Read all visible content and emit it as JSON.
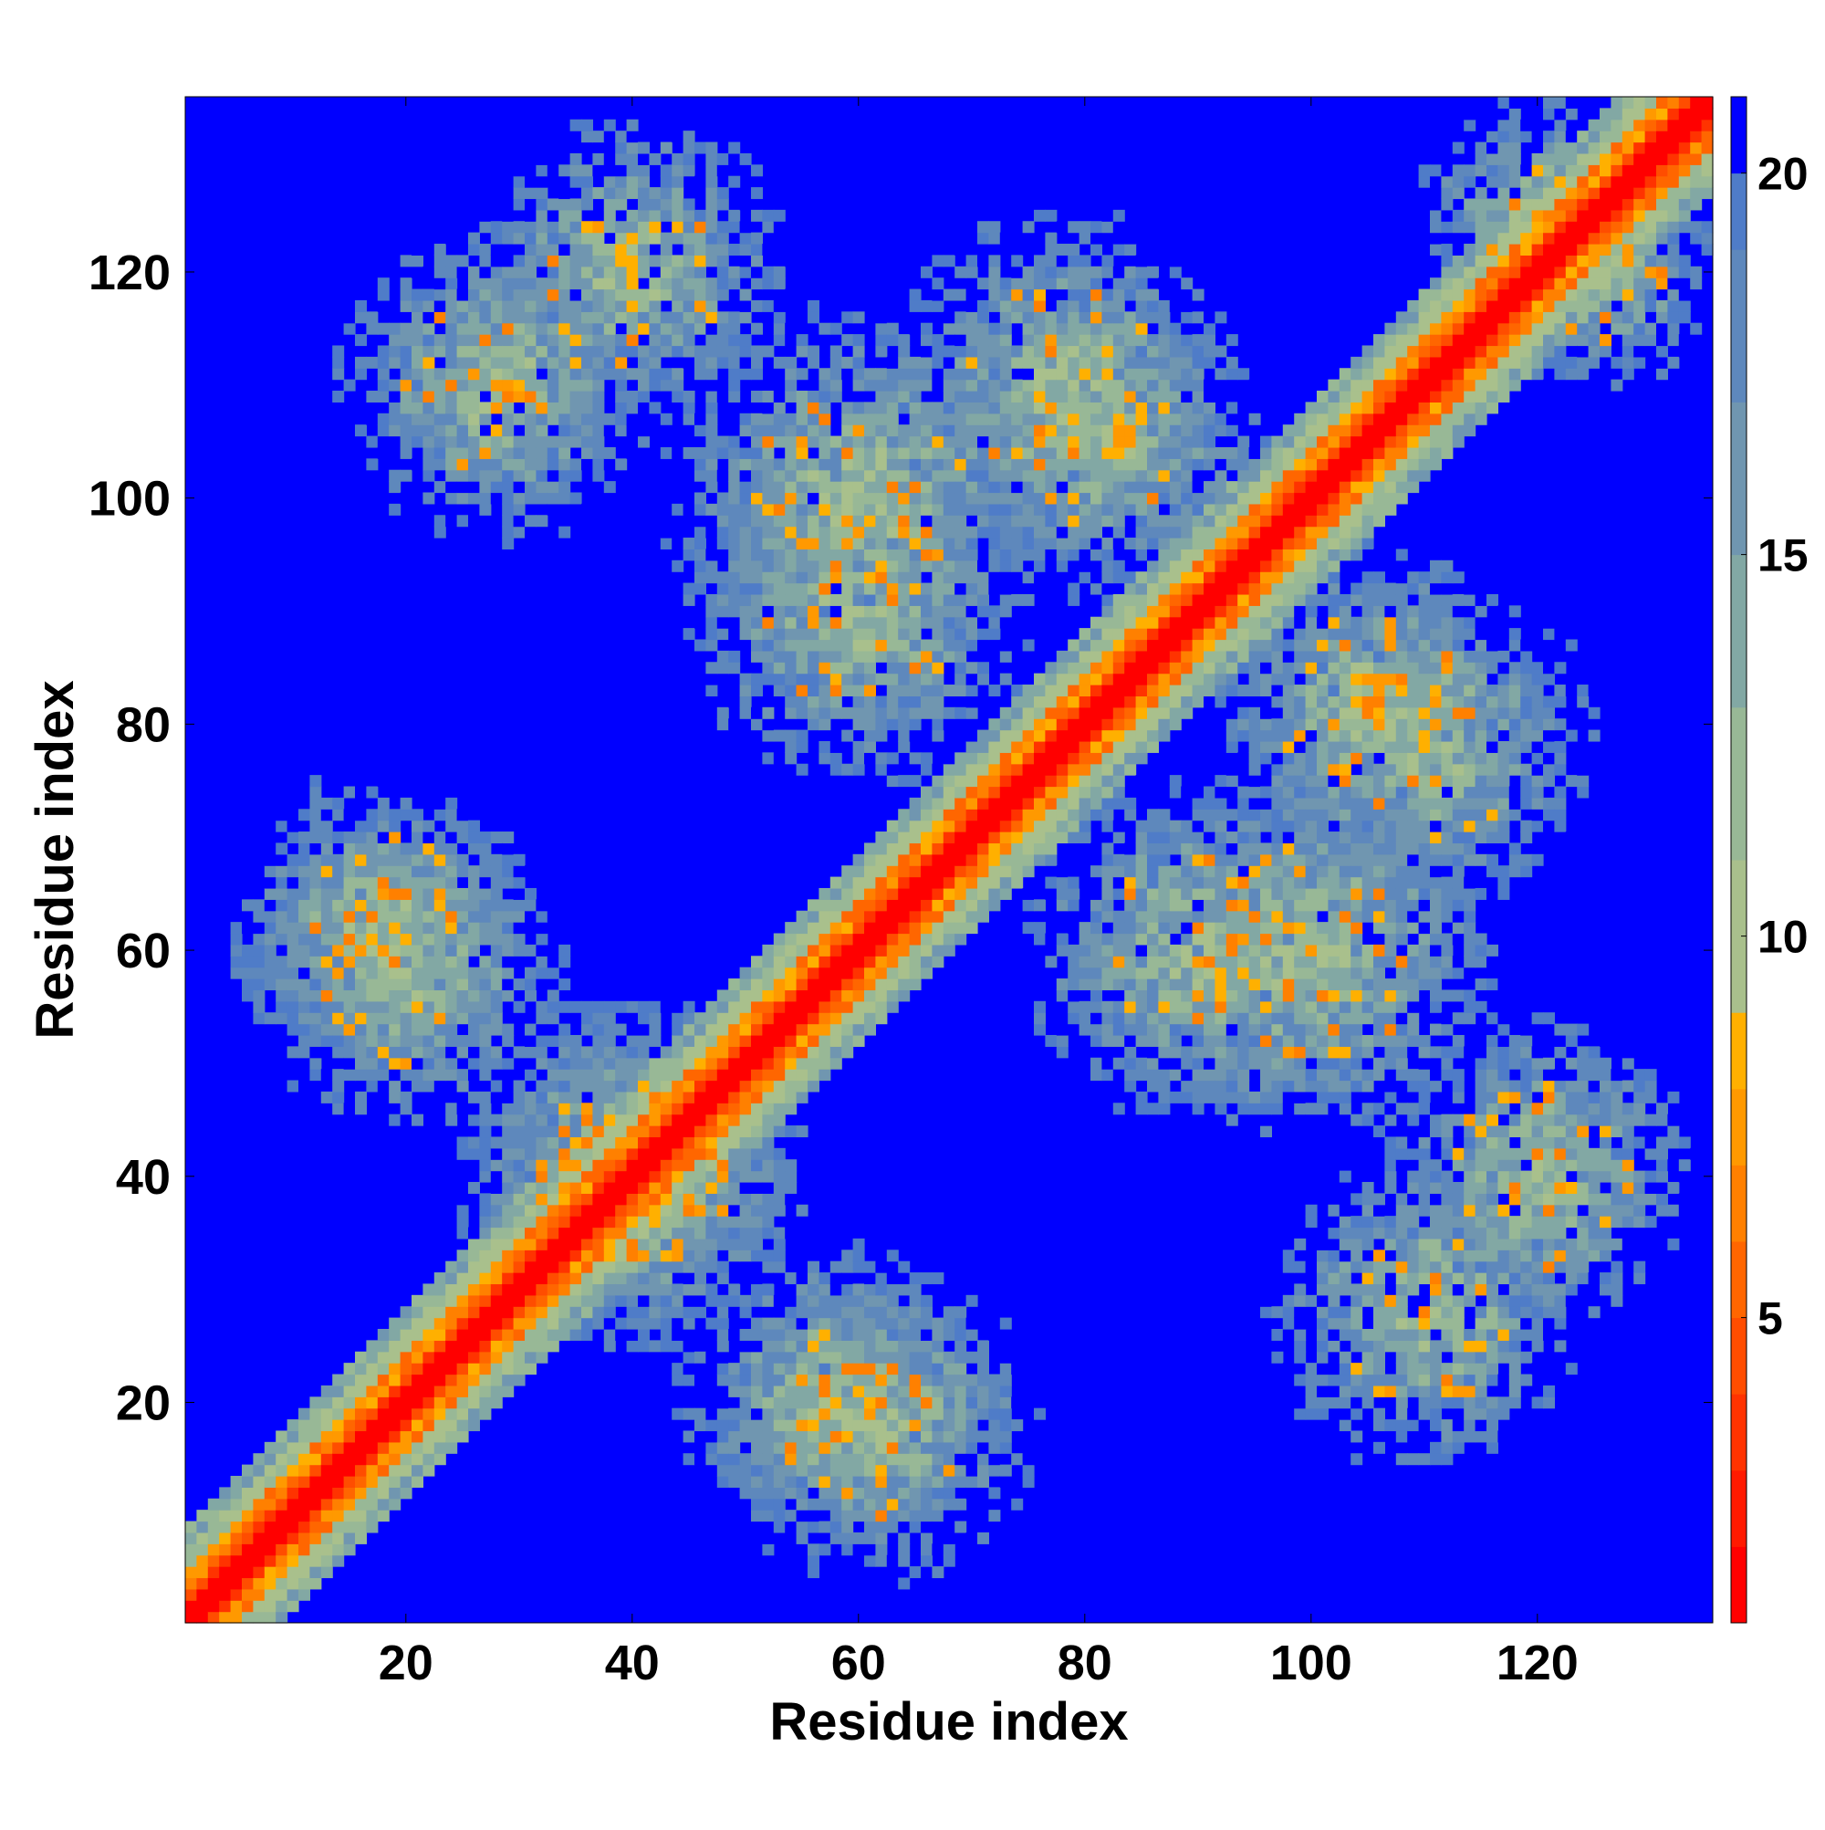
{
  "chart_data": {
    "type": "heatmap",
    "title": "",
    "xlabel": "Residue index",
    "ylabel": "Residue index",
    "xlim": [
      1,
      135
    ],
    "ylim": [
      1,
      135
    ],
    "x_ticks": [
      20,
      40,
      60,
      80,
      100,
      120
    ],
    "y_ticks": [
      20,
      40,
      60,
      80,
      100,
      120
    ],
    "colorbar": {
      "ticks": [
        5,
        10,
        15,
        20
      ],
      "range": [
        1,
        21
      ],
      "placement": "right",
      "levels": [
        {
          "max": 2,
          "color": "#ff0000"
        },
        {
          "max": 3,
          "color": "#ff1a00"
        },
        {
          "max": 4,
          "color": "#ff3300"
        },
        {
          "max": 5,
          "color": "#ff4d00"
        },
        {
          "max": 6,
          "color": "#ff6600"
        },
        {
          "max": 7,
          "color": "#ff8000"
        },
        {
          "max": 8,
          "color": "#ff9900"
        },
        {
          "max": 9,
          "color": "#ffb000"
        },
        {
          "max": 11,
          "color": "#a9c08c"
        },
        {
          "max": 13,
          "color": "#98b896"
        },
        {
          "max": 15,
          "color": "#82a8a4"
        },
        {
          "max": 17,
          "color": "#7096b0"
        },
        {
          "max": 19,
          "color": "#5e88bc"
        },
        {
          "max": 20,
          "color": "#4f7cc8"
        },
        {
          "max": 21,
          "color": "#0000ff"
        }
      ]
    },
    "cap_value": 21,
    "contact_bands": [
      {
        "note": "diagonal",
        "offset": 0
      },
      {
        "x_center": 18,
        "y_center": 62,
        "spread": 9
      },
      {
        "x_center": 40,
        "y_center": 40,
        "spread": 10
      },
      {
        "x_center": 58,
        "y_center": 20,
        "spread": 9
      },
      {
        "x_center": 60,
        "y_center": 100,
        "spread": 11
      },
      {
        "x_center": 82,
        "y_center": 105,
        "spread": 9
      },
      {
        "x_center": 90,
        "y_center": 60,
        "spread": 10
      },
      {
        "x_center": 110,
        "y_center": 78,
        "spread": 10
      },
      {
        "x_center": 120,
        "y_center": 40,
        "spread": 9
      },
      {
        "x_center": 28,
        "y_center": 110,
        "spread": 9
      },
      {
        "x_center": 125,
        "y_center": 120,
        "spread": 7
      }
    ]
  }
}
